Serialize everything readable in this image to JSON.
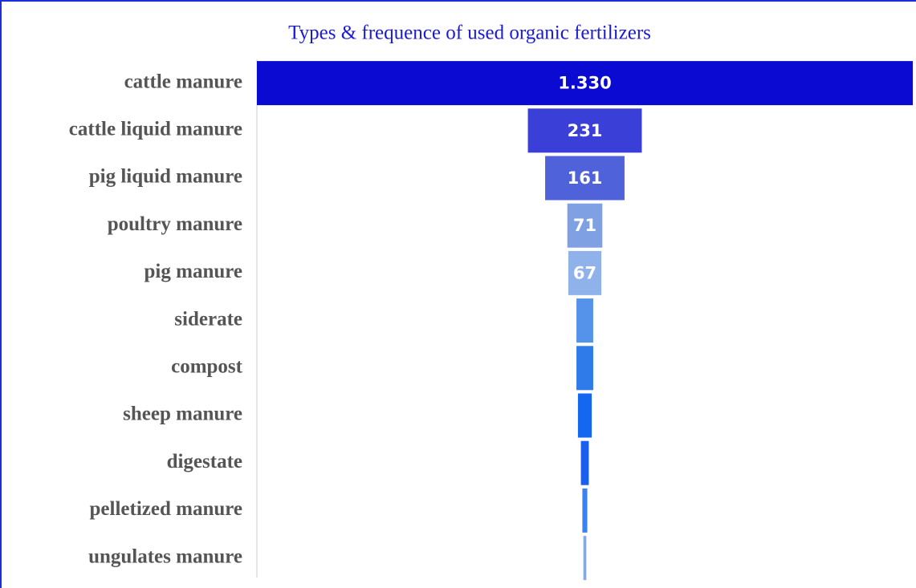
{
  "chart_data": {
    "type": "funnel",
    "title": "Types & frequence of used organic fertilizers",
    "categories": [
      "cattle manure",
      "cattle liquid manure",
      "pig liquid manure",
      "poultry manure",
      "pig manure",
      "siderate",
      "compost",
      "sheep manure",
      "digestate",
      "pelletized manure",
      "ungulates manure"
    ],
    "values": [
      1330,
      231,
      161,
      71,
      67,
      34,
      34,
      28,
      16,
      10,
      6
    ],
    "value_labels": [
      "1.330",
      "231",
      "161",
      "71",
      "67",
      null,
      null,
      null,
      null,
      null,
      null
    ],
    "colors": [
      "#0a0ad2",
      "#3a3fd8",
      "#4f62da",
      "#7fa0e2",
      "#8fb2ea",
      "#5592ea",
      "#2f7bea",
      "#1566f0",
      "#1a5ff0",
      "#3a82f0",
      "#7aabf0"
    ]
  }
}
